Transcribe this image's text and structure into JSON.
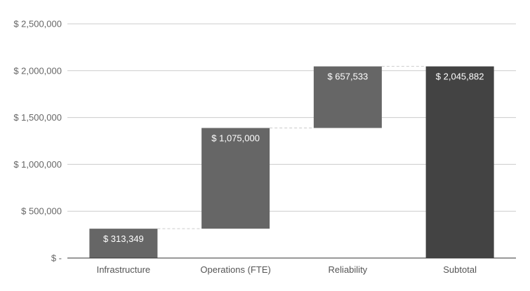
{
  "chart_data": {
    "type": "bar",
    "subtype": "waterfall",
    "categories": [
      "Infrastructure",
      "Operations (FTE)",
      "Reliability",
      "Subtotal"
    ],
    "values": [
      313349,
      1075000,
      657533,
      2045882
    ],
    "is_total": [
      false,
      false,
      false,
      true
    ],
    "data_labels": [
      "$ 313,349",
      "$ 1,075,000",
      "$ 657,533",
      "$ 2,045,882"
    ],
    "yticks": [
      0,
      500000,
      1000000,
      1500000,
      2000000,
      2500000
    ],
    "ytick_labels": [
      "$ -",
      "$ 500,000",
      "$ 1,000,000",
      "$ 1,500,000",
      "$ 2,000,000",
      "$ 2,500,000"
    ],
    "ylim": [
      0,
      2500000
    ],
    "grid": true,
    "connector_lines": true,
    "legend": "none",
    "colors": {
      "step_bar": "#666666",
      "total_bar": "#434343",
      "grid": "#cccccc",
      "baseline": "#333333",
      "connector": "#cccccc"
    }
  }
}
